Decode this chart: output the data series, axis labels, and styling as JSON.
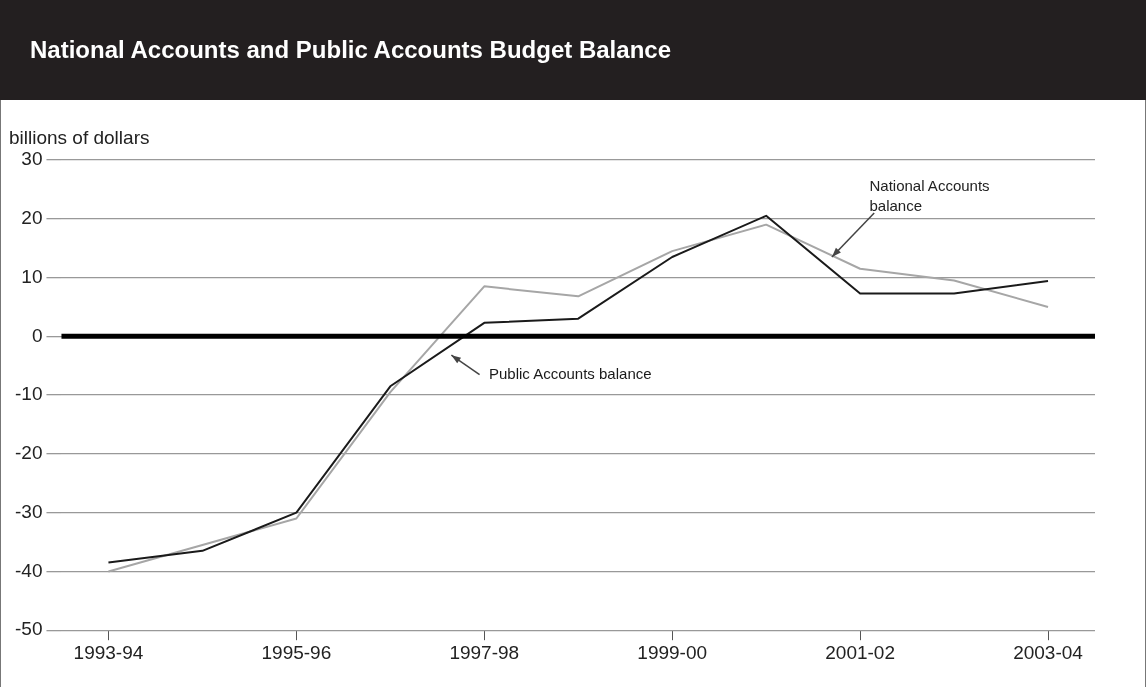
{
  "chart_data": {
    "type": "line",
    "title": "National Accounts and Public Accounts Budget Balance",
    "ylabel": "billions of dollars",
    "categories": [
      "1993-94",
      null,
      "1995-96",
      null,
      "1997-98",
      null,
      "1999-00",
      null,
      "2001-02",
      null,
      "2003-04"
    ],
    "series": [
      {
        "name": "Public Accounts balance",
        "color": "#1a1a1a",
        "values": [
          -38.5,
          -36.5,
          -30,
          -8.5,
          2.3,
          3,
          13.5,
          20.5,
          7.3,
          7.3,
          9.4
        ]
      },
      {
        "name": "National Accounts balance",
        "color": "#a6a6a6",
        "values": [
          -40,
          -35.5,
          -31,
          -9.5,
          8.5,
          6.8,
          14.5,
          19,
          11.5,
          9.5,
          5
        ]
      }
    ],
    "ylim": [
      -50,
      30
    ],
    "yticks": [
      -50,
      -40,
      -30,
      -20,
      -10,
      0,
      10,
      20,
      30
    ],
    "grid": "y",
    "legend": false,
    "marker": "none",
    "line_style": "solid",
    "ref_lines": [
      {
        "axis": "y",
        "value": 0,
        "color": "#000000"
      }
    ]
  }
}
